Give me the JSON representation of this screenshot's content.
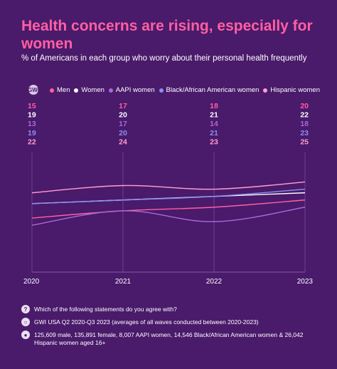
{
  "title": "Health concerns are rising, especially for women",
  "subtitle": "% of Americans in each group who worry about their personal health frequently",
  "brand_icon": "GWI",
  "footer": {
    "question": "Which of the following statements do you agree with?",
    "source": "GWI USA Q2 2020-Q3 2023 (averages of all waves conducted between 2020-2023)",
    "base": "125,609 male, 135,891 female, 8,007 AAPI women, 14,546 Black/African American women & 26,042 Hispanic women aged 16+"
  },
  "footer_icons": {
    "question": "question-icon",
    "source": "globe-icon",
    "base": "people-icon"
  },
  "chart_data": {
    "type": "line",
    "x": [
      "2020",
      "2021",
      "2022",
      "2023"
    ],
    "series": [
      {
        "name": "Men",
        "color": "#ff5fa2",
        "values": [
          15,
          17,
          18,
          20
        ]
      },
      {
        "name": "Women",
        "color": "#ffffff",
        "values": [
          19,
          20,
          21,
          22
        ]
      },
      {
        "name": "AAPI women",
        "color": "#a66ad6",
        "values": [
          13,
          17,
          14,
          18
        ]
      },
      {
        "name": "Black/African American women",
        "color": "#8a8ff0",
        "values": [
          19,
          20,
          21,
          23
        ]
      },
      {
        "name": "Hispanic women",
        "color": "#ff9ed0",
        "values": [
          22,
          24,
          23,
          25
        ]
      }
    ],
    "ylim": [
      0,
      32
    ],
    "grid": "vertical",
    "legend_position": "top",
    "title": "",
    "xlabel": "",
    "ylabel": ""
  }
}
